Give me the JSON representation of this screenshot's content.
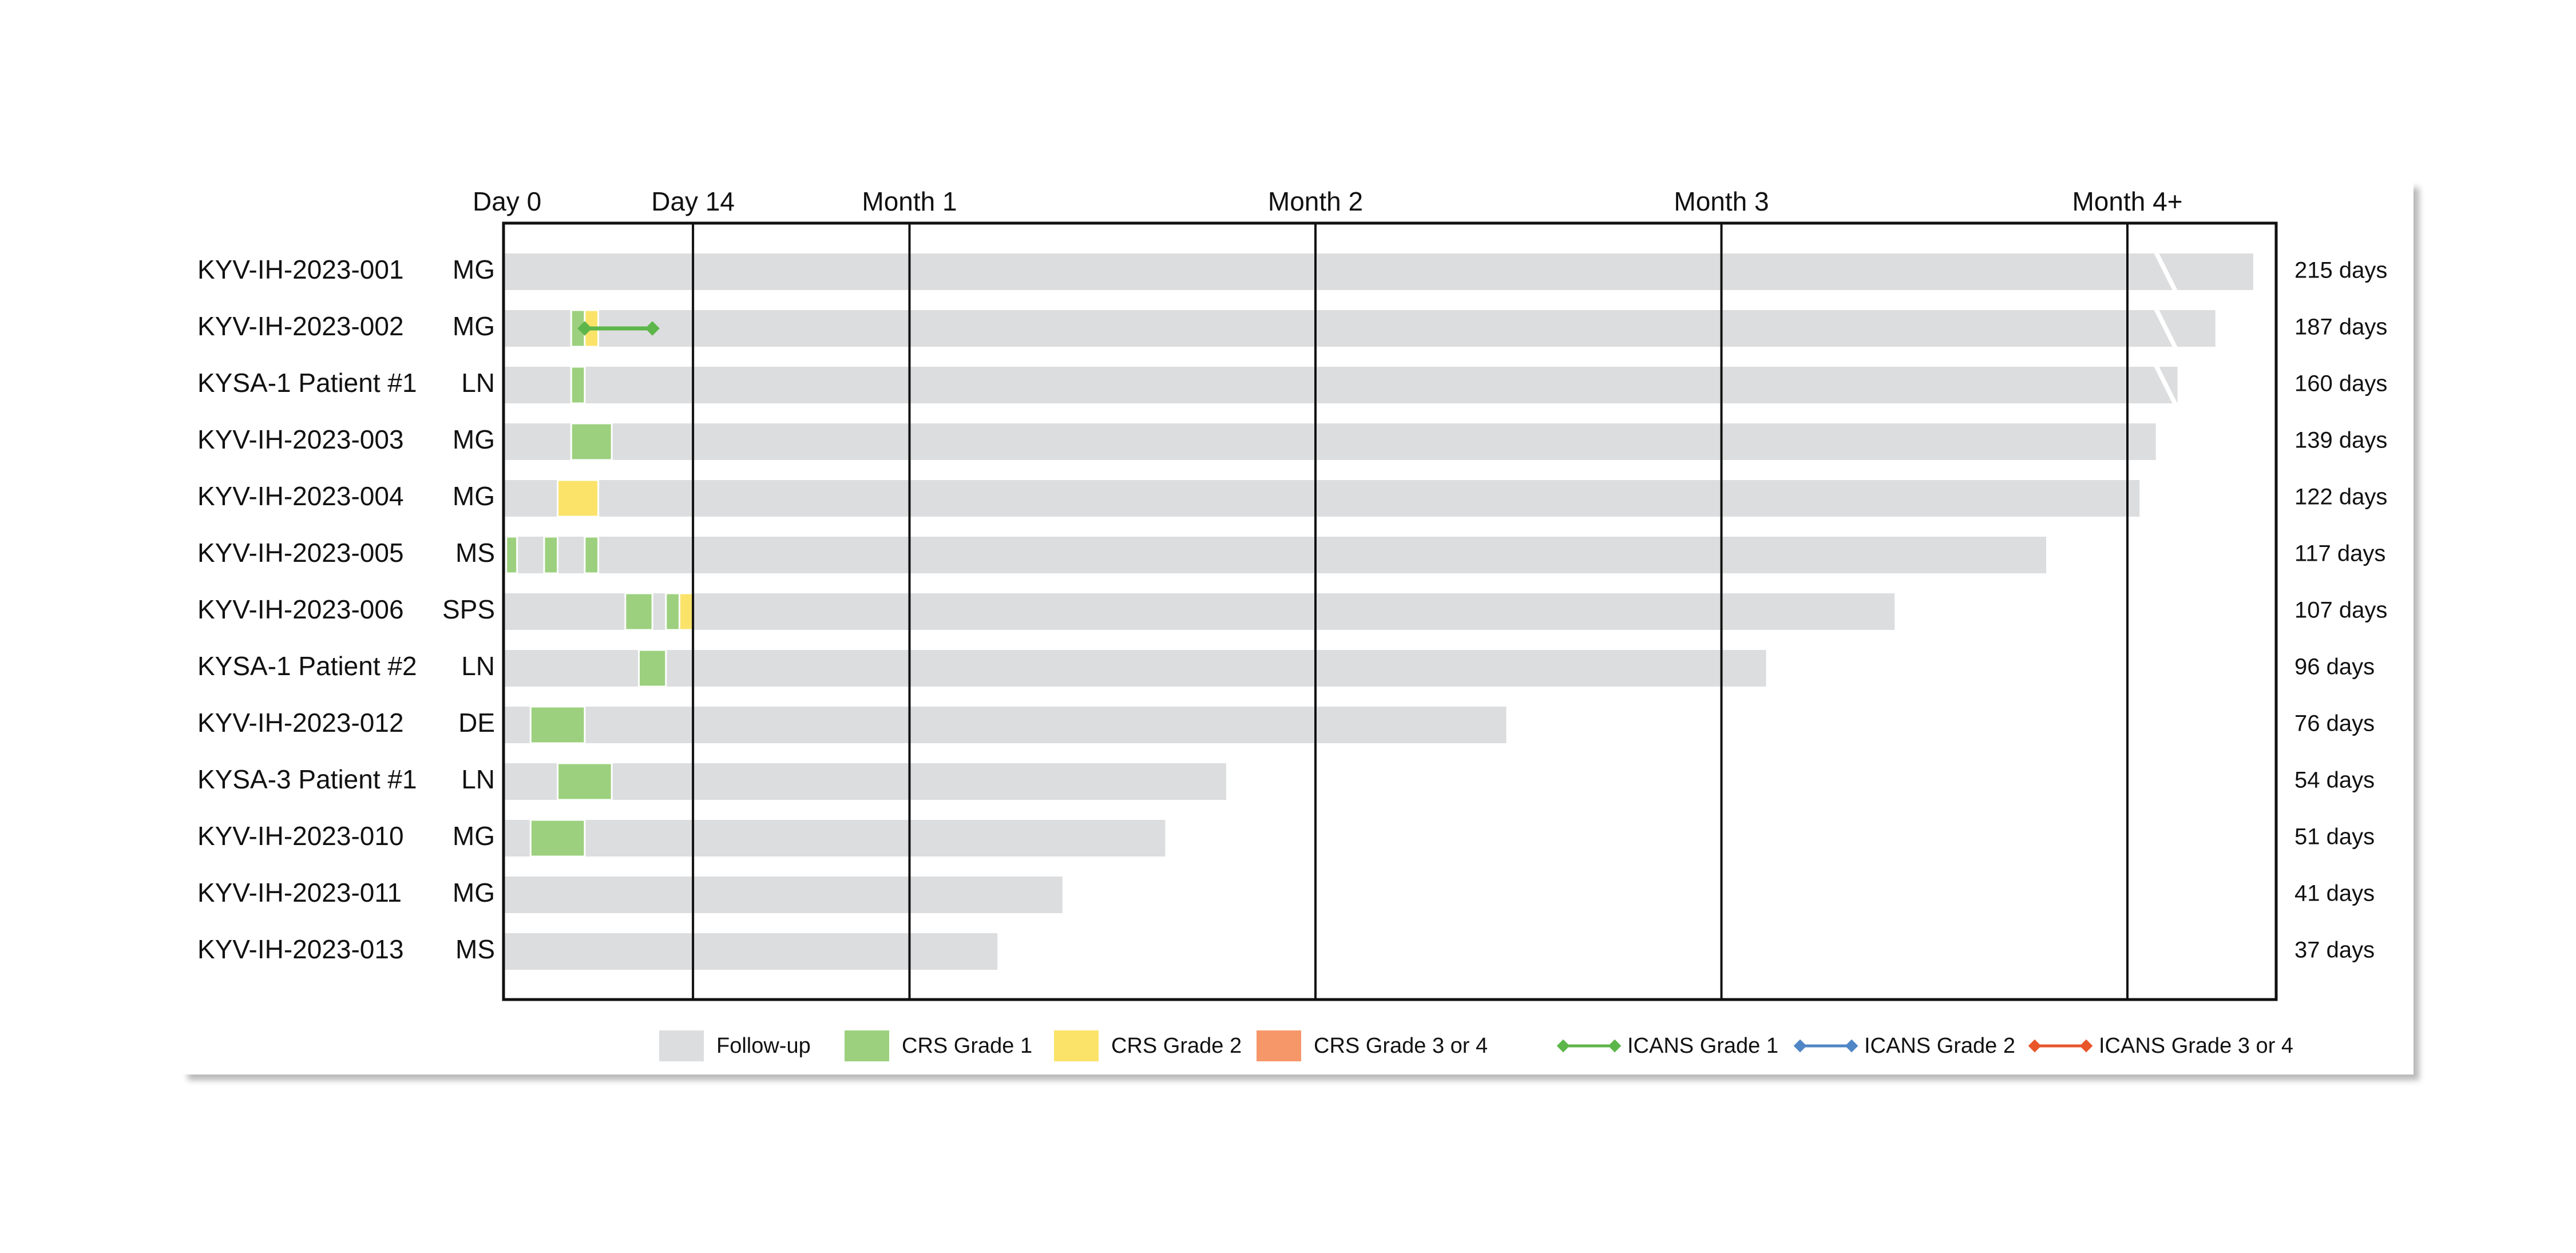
{
  "chart_data": {
    "type": "swimlane",
    "title": "",
    "xlabel": "",
    "ylabel": "",
    "x_unit": "days",
    "xlim": [
      0,
      131
    ],
    "x_ticks": [
      {
        "label": "Day 0",
        "day": 0
      },
      {
        "label": "Day 14",
        "day": 14
      },
      {
        "label": "Month 1",
        "day": 30
      },
      {
        "label": "Month 2",
        "day": 60
      },
      {
        "label": "Month 3",
        "day": 90
      },
      {
        "label": "Month 4+",
        "day": 120
      }
    ],
    "axis_break_after_day": 120,
    "patients": [
      {
        "id": "KYV-IH-2023-001",
        "indication": "MG",
        "duration_label": "215 days",
        "bar_end": 129.3,
        "break": true,
        "crs": [],
        "icans": []
      },
      {
        "id": "KYV-IH-2023-002",
        "indication": "MG",
        "duration_label": "187 days",
        "bar_end": 126.5,
        "break": true,
        "crs": [
          {
            "grade": 1,
            "start": 5,
            "end": 6
          },
          {
            "grade": 2,
            "start": 6,
            "end": 7
          }
        ],
        "icans": [
          {
            "grade": 1,
            "start": 6,
            "end": 11
          }
        ]
      },
      {
        "id": "KYSA-1 Patient #1",
        "indication": "LN",
        "duration_label": "160 days",
        "bar_end": 123.7,
        "break": true,
        "crs": [
          {
            "grade": 1,
            "start": 5,
            "end": 6
          }
        ],
        "icans": []
      },
      {
        "id": "KYV-IH-2023-003",
        "indication": "MG",
        "duration_label": "139 days",
        "bar_end": 122.1,
        "break": false,
        "crs": [
          {
            "grade": 1,
            "start": 5,
            "end": 8
          }
        ],
        "icans": []
      },
      {
        "id": "KYV-IH-2023-004",
        "indication": "MG",
        "duration_label": "122 days",
        "bar_end": 120.9,
        "break": false,
        "crs": [
          {
            "grade": 2,
            "start": 4,
            "end": 7
          }
        ],
        "icans": []
      },
      {
        "id": "KYV-IH-2023-005",
        "indication": "MS",
        "duration_label": "117 days",
        "bar_end": 114,
        "break": false,
        "crs": [
          {
            "grade": 1,
            "start": 0.2,
            "end": 1
          },
          {
            "grade": 1,
            "start": 3,
            "end": 4
          },
          {
            "grade": 1,
            "start": 6,
            "end": 7
          }
        ],
        "icans": []
      },
      {
        "id": "KYV-IH-2023-006",
        "indication": "SPS",
        "duration_label": "107 days",
        "bar_end": 102.8,
        "break": false,
        "crs": [
          {
            "grade": 1,
            "start": 9,
            "end": 11
          },
          {
            "grade": 1,
            "start": 12,
            "end": 13
          },
          {
            "grade": 2,
            "start": 13,
            "end": 14
          }
        ],
        "icans": []
      },
      {
        "id": "KYSA-1 Patient #2",
        "indication": "LN",
        "duration_label": "96 days",
        "bar_end": 93.3,
        "break": false,
        "crs": [
          {
            "grade": 1,
            "start": 10,
            "end": 12
          }
        ],
        "icans": []
      },
      {
        "id": "KYV-IH-2023-012",
        "indication": "DE",
        "duration_label": "76 days",
        "bar_end": 74.1,
        "break": false,
        "crs": [
          {
            "grade": 1,
            "start": 2,
            "end": 6
          }
        ],
        "icans": []
      },
      {
        "id": "KYSA-3 Patient #1",
        "indication": "LN",
        "duration_label": "54 days",
        "bar_end": 53.4,
        "break": false,
        "crs": [
          {
            "grade": 1,
            "start": 4,
            "end": 8
          }
        ],
        "icans": []
      },
      {
        "id": "KYV-IH-2023-010",
        "indication": "MG",
        "duration_label": "51 days",
        "bar_end": 48.9,
        "break": false,
        "crs": [
          {
            "grade": 1,
            "start": 2,
            "end": 6
          }
        ],
        "icans": []
      },
      {
        "id": "KYV-IH-2023-011",
        "indication": "MG",
        "duration_label": "41 days",
        "bar_end": 41.3,
        "break": false,
        "crs": [],
        "icans": []
      },
      {
        "id": "KYV-IH-2023-013",
        "indication": "MS",
        "duration_label": "37 days",
        "bar_end": 36.5,
        "break": false,
        "crs": [],
        "icans": []
      }
    ],
    "legend": {
      "placement": "bottom",
      "items": [
        {
          "label": "Follow-up",
          "kind": "box",
          "color": "#dcddde"
        },
        {
          "label": "CRS Grade 1",
          "kind": "box",
          "color": "#9cd07e"
        },
        {
          "label": "CRS Grade 2",
          "kind": "box",
          "color": "#fbe36a"
        },
        {
          "label": "CRS Grade 3 or 4",
          "kind": "box",
          "color": "#f6976a"
        },
        {
          "label": "ICANS Grade 1",
          "kind": "line",
          "color": "#5db64a"
        },
        {
          "label": "ICANS Grade 2",
          "kind": "line",
          "color": "#4f86c6"
        },
        {
          "label": "ICANS Grade 3 or 4",
          "kind": "line",
          "color": "#e8562a"
        }
      ]
    },
    "colors": {
      "follow_up": "#dcddde",
      "crs_grade_1": "#9cd07e",
      "crs_grade_2": "#fbe36a",
      "crs_grade_3_4": "#f6976a",
      "icans_grade_1": "#5db64a",
      "icans_grade_2": "#4f86c6",
      "icans_grade_3_4": "#e8562a",
      "axis": "#111111"
    }
  }
}
